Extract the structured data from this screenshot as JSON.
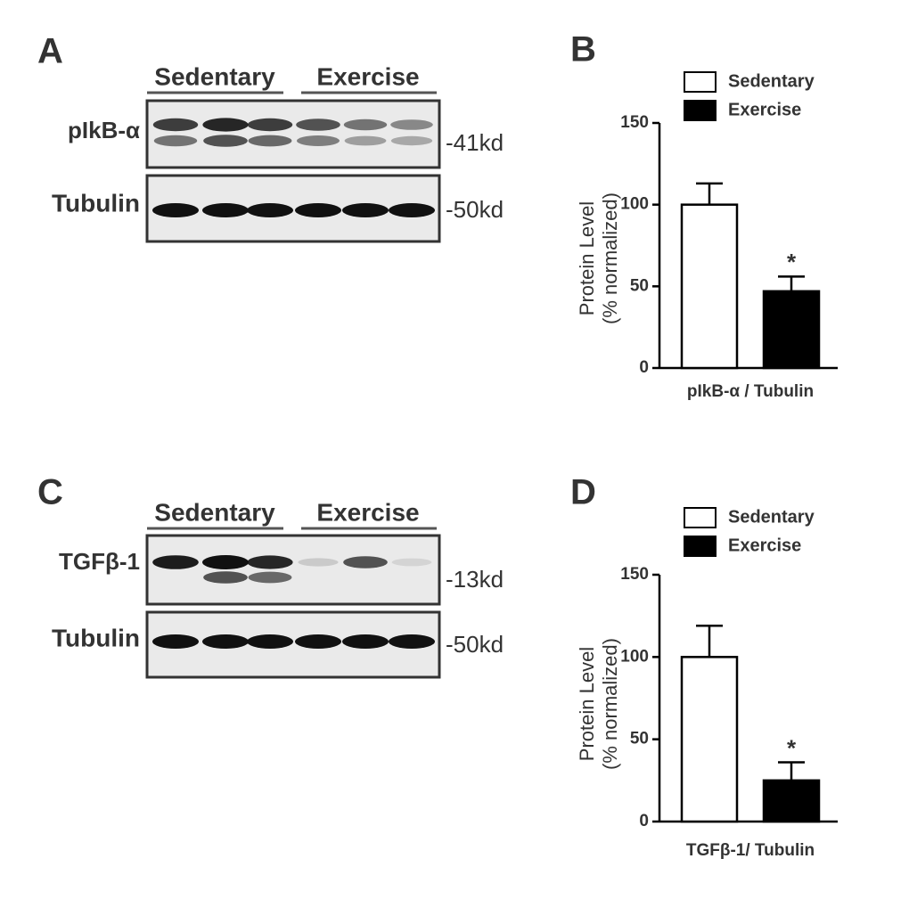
{
  "panels": [
    "A",
    "B",
    "C",
    "D"
  ],
  "blots": [
    {
      "groups": [
        "Sedentary",
        "Exercise"
      ],
      "rows": [
        {
          "label": "pIkB-α",
          "size": "-41kd"
        },
        {
          "label": "Tubulin",
          "size": "-50kd"
        }
      ]
    },
    {
      "groups": [
        "Sedentary",
        "Exercise"
      ],
      "rows": [
        {
          "label": "TGFβ-1",
          "size": "-13kd"
        },
        {
          "label": "Tubulin",
          "size": "-50kd"
        }
      ]
    }
  ],
  "chart_data": [
    {
      "type": "bar",
      "ylabel": [
        "Protein Level",
        "(% normalized)"
      ],
      "xlabel": "pIkB-α / Tubulin",
      "annotation": "*",
      "series": [
        {
          "name": "Sedentary",
          "color": "#ffffff",
          "values": [
            100
          ],
          "errors": [
            13
          ]
        },
        {
          "name": "Exercise",
          "color": "#000000",
          "values": [
            47
          ],
          "errors": [
            9
          ]
        }
      ],
      "ylim": [
        0,
        150
      ],
      "yticks": [
        0,
        50,
        100,
        150
      ]
    },
    {
      "type": "bar",
      "ylabel": [
        "Protein Level",
        "(% normalized)"
      ],
      "xlabel": "TGFβ-1/ Tubulin",
      "annotation": "*",
      "series": [
        {
          "name": "Sedentary",
          "color": "#ffffff",
          "values": [
            100
          ],
          "errors": [
            19
          ]
        },
        {
          "name": "Exercise",
          "color": "#000000",
          "values": [
            25
          ],
          "errors": [
            11
          ]
        }
      ],
      "ylim": [
        0,
        150
      ],
      "yticks": [
        0,
        50,
        100,
        150
      ]
    }
  ]
}
